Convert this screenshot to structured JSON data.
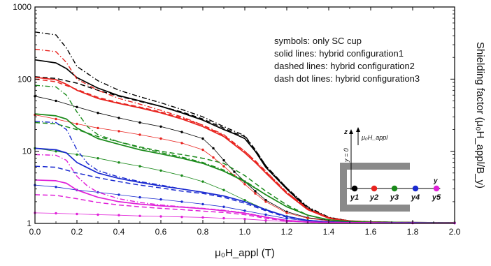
{
  "chart_data": {
    "type": "line",
    "xlabel": "μ₀H_appl (T)",
    "ylabel": "Shielding factor (μ₀H_appl/B_y)",
    "xlim": [
      0,
      2.0
    ],
    "ylim": [
      1,
      1000
    ],
    "yscale": "log",
    "x_ticks": [
      "0.0",
      "0.2",
      "0.4",
      "0.6",
      "0.8",
      "1.0",
      "1.2",
      "1.4",
      "1.6",
      "1.8",
      "2.0"
    ],
    "y_ticks": [
      "1",
      "10",
      "100",
      "1000"
    ],
    "legend_lines": [
      "symbols: only SC cup",
      "solid lines: hybrid configuration1",
      "dashed lines: hybrid configuration2",
      "dash dot lines: hybrid configuration3"
    ],
    "inset": {
      "z_label": "z",
      "y_label": "y",
      "field_label": "μ₀H_appl",
      "y0_label": "y = 0",
      "points": [
        {
          "label": "y1",
          "color": "#000000"
        },
        {
          "label": "y2",
          "color": "#e8231e"
        },
        {
          "label": "y3",
          "color": "#1a8a1a"
        },
        {
          "label": "y4",
          "color": "#1a2ad0"
        },
        {
          "label": "y5",
          "color": "#e020d8"
        }
      ]
    },
    "series": [
      {
        "position": "y1",
        "style": "solid",
        "color": "#000000",
        "x": [
          0.0,
          0.1,
          0.15,
          0.2,
          0.3,
          0.4,
          0.5,
          0.6,
          0.7,
          0.8,
          0.9,
          0.95,
          1.0,
          1.05,
          1.1,
          1.2,
          1.3,
          1.4,
          1.5,
          1.6,
          1.8,
          2.0
        ],
        "y": [
          185,
          168,
          140,
          105,
          75,
          59,
          50,
          42,
          34,
          27,
          20,
          17.5,
          15,
          10,
          6,
          3,
          1.6,
          1.2,
          1.08,
          1.05,
          1.03,
          1.02
        ]
      },
      {
        "position": "y1",
        "style": "dashed",
        "color": "#000000",
        "x": [
          0.0,
          0.1,
          0.2,
          0.3,
          0.4,
          0.5,
          0.6,
          0.7,
          0.8,
          0.9,
          0.95,
          1.0,
          1.05,
          1.1,
          1.2,
          1.3,
          1.4,
          1.5,
          1.6,
          1.8,
          2.0
        ],
        "y": [
          108,
          102,
          88,
          70,
          58,
          49,
          42,
          35,
          28,
          21,
          18,
          16,
          10.5,
          6.3,
          3.1,
          1.65,
          1.2,
          1.08,
          1.05,
          1.03,
          1.02
        ]
      },
      {
        "position": "y1",
        "style": "dashdot",
        "color": "#000000",
        "x": [
          0.0,
          0.1,
          0.15,
          0.2,
          0.3,
          0.4,
          0.5,
          0.6,
          0.7,
          0.8,
          0.9,
          0.95,
          1.0,
          1.05,
          1.1,
          1.2,
          1.3,
          1.4,
          1.5,
          1.6,
          1.8,
          2.0
        ],
        "y": [
          450,
          410,
          270,
          150,
          95,
          70,
          57,
          47,
          38,
          30,
          22,
          19,
          16.5,
          10.5,
          6.3,
          3.1,
          1.7,
          1.22,
          1.08,
          1.05,
          1.03,
          1.02
        ]
      },
      {
        "position": "y1",
        "style": "symbols",
        "color": "#000000",
        "x": [
          0.0,
          0.1,
          0.2,
          0.3,
          0.4,
          0.5,
          0.6,
          0.7,
          0.8,
          0.85,
          0.9,
          0.95,
          1.0,
          1.05,
          1.1,
          1.2,
          1.3,
          1.4,
          1.5,
          1.6,
          1.8,
          2.0
        ],
        "y": [
          58,
          50,
          41,
          34,
          29,
          25,
          22,
          18.5,
          15,
          11,
          7.5,
          5.2,
          3.8,
          2.8,
          2.1,
          1.45,
          1.2,
          1.1,
          1.06,
          1.04,
          1.03,
          1.02
        ]
      },
      {
        "position": "y2",
        "style": "solid",
        "color": "#e8231e",
        "x": [
          0.0,
          0.1,
          0.15,
          0.2,
          0.3,
          0.4,
          0.5,
          0.6,
          0.7,
          0.8,
          0.9,
          1.0,
          1.05,
          1.1,
          1.2,
          1.3,
          1.4,
          1.5,
          1.6,
          1.8,
          2.0
        ],
        "y": [
          106,
          98,
          85,
          70,
          54,
          46,
          40,
          34,
          28,
          22,
          16,
          9.5,
          7,
          5,
          2.6,
          1.55,
          1.18,
          1.07,
          1.04,
          1.03,
          1.02
        ]
      },
      {
        "position": "y2",
        "style": "dashed",
        "color": "#e8231e",
        "x": [
          0.0,
          0.1,
          0.2,
          0.3,
          0.4,
          0.5,
          0.6,
          0.7,
          0.8,
          0.9,
          1.0,
          1.05,
          1.1,
          1.2,
          1.3,
          1.4,
          1.5,
          1.6,
          1.8,
          2.0
        ],
        "y": [
          100,
          92,
          72,
          56,
          47,
          41,
          35,
          29,
          23,
          16.5,
          10,
          7.3,
          5.2,
          2.7,
          1.6,
          1.2,
          1.08,
          1.05,
          1.03,
          1.02
        ]
      },
      {
        "position": "y2",
        "style": "dashdot",
        "color": "#e8231e",
        "x": [
          0.0,
          0.1,
          0.15,
          0.2,
          0.3,
          0.4,
          0.5,
          0.6,
          0.7,
          0.8,
          0.9,
          1.0,
          1.05,
          1.1,
          1.2,
          1.3,
          1.4,
          1.5,
          1.6,
          1.8,
          2.0
        ],
        "y": [
          260,
          240,
          170,
          100,
          70,
          54,
          45,
          37,
          30,
          23,
          17,
          10,
          7.4,
          5.3,
          2.7,
          1.6,
          1.2,
          1.08,
          1.05,
          1.03,
          1.02
        ]
      },
      {
        "position": "y2",
        "style": "symbols",
        "color": "#e8231e",
        "x": [
          0.0,
          0.1,
          0.2,
          0.3,
          0.4,
          0.5,
          0.6,
          0.7,
          0.8,
          0.85,
          0.9,
          0.95,
          1.0,
          1.05,
          1.1,
          1.2,
          1.3,
          1.4,
          1.5,
          1.6,
          1.8,
          2.0
        ],
        "y": [
          32,
          28,
          24,
          21,
          19,
          17,
          15,
          13,
          10.5,
          8.2,
          6.2,
          4.6,
          3.5,
          2.6,
          2.0,
          1.4,
          1.18,
          1.09,
          1.05,
          1.04,
          1.03,
          1.02
        ]
      },
      {
        "position": "y3",
        "style": "solid",
        "color": "#1a8a1a",
        "x": [
          0.0,
          0.1,
          0.15,
          0.2,
          0.3,
          0.4,
          0.5,
          0.6,
          0.7,
          0.8,
          0.9,
          1.0,
          1.1,
          1.2,
          1.3,
          1.4,
          1.5,
          1.6,
          1.8,
          2.0
        ],
        "y": [
          33,
          31,
          28,
          21,
          15,
          12.5,
          10.5,
          9.2,
          8,
          6.8,
          5.3,
          3.8,
          2.5,
          1.7,
          1.3,
          1.12,
          1.06,
          1.04,
          1.03,
          1.02
        ]
      },
      {
        "position": "y3",
        "style": "dashed",
        "color": "#1a8a1a",
        "x": [
          0.0,
          0.1,
          0.2,
          0.3,
          0.4,
          0.5,
          0.6,
          0.7,
          0.8,
          0.9,
          1.0,
          1.1,
          1.2,
          1.3,
          1.4,
          1.5,
          1.6,
          1.8,
          2.0
        ],
        "y": [
          25,
          24,
          20,
          16,
          13.5,
          11.5,
          10,
          9,
          8,
          6.8,
          4.6,
          2.8,
          1.8,
          1.3,
          1.12,
          1.06,
          1.04,
          1.03,
          1.02
        ]
      },
      {
        "position": "y3",
        "style": "dashdot",
        "color": "#1a8a1a",
        "x": [
          0.0,
          0.1,
          0.15,
          0.2,
          0.25,
          0.3,
          0.4,
          0.5,
          0.6,
          0.7,
          0.8,
          0.9,
          1.0,
          1.1,
          1.2,
          1.3,
          1.4,
          1.5,
          1.6,
          1.8,
          2.0
        ],
        "y": [
          82,
          78,
          60,
          35,
          22,
          17,
          13.5,
          11.2,
          9.6,
          8.3,
          7,
          5.5,
          3.9,
          2.5,
          1.7,
          1.3,
          1.12,
          1.06,
          1.04,
          1.03,
          1.02
        ]
      },
      {
        "position": "y3",
        "style": "symbols",
        "color": "#1a8a1a",
        "x": [
          0.0,
          0.1,
          0.2,
          0.3,
          0.4,
          0.5,
          0.6,
          0.7,
          0.8,
          0.9,
          1.0,
          1.1,
          1.2,
          1.3,
          1.4,
          1.5,
          1.6,
          1.8,
          2.0
        ],
        "y": [
          11,
          10,
          9,
          8,
          7,
          6.2,
          5.4,
          4.6,
          3.8,
          2.9,
          2.1,
          1.55,
          1.25,
          1.1,
          1.06,
          1.04,
          1.03,
          1.02,
          1.02
        ]
      },
      {
        "position": "y4",
        "style": "solid",
        "color": "#1a2ad0",
        "x": [
          0.0,
          0.1,
          0.15,
          0.2,
          0.3,
          0.4,
          0.5,
          0.6,
          0.7,
          0.8,
          0.9,
          1.0,
          1.1,
          1.2,
          1.3,
          1.4,
          1.5,
          1.6,
          1.8,
          2.0
        ],
        "y": [
          11,
          10.5,
          9.5,
          7,
          5,
          4.2,
          3.7,
          3.3,
          3.0,
          2.7,
          2.4,
          2.0,
          1.55,
          1.25,
          1.1,
          1.05,
          1.03,
          1.02,
          1.02,
          1.01
        ]
      },
      {
        "position": "y4",
        "style": "dashed",
        "color": "#1a2ad0",
        "x": [
          0.0,
          0.1,
          0.2,
          0.3,
          0.4,
          0.5,
          0.6,
          0.7,
          0.8,
          0.9,
          1.0,
          1.1,
          1.2,
          1.3,
          1.4,
          1.5,
          1.6,
          1.8,
          2.0
        ],
        "y": [
          6.2,
          6,
          5,
          4.3,
          3.8,
          3.4,
          3.1,
          2.8,
          2.6,
          2.3,
          1.9,
          1.5,
          1.22,
          1.1,
          1.05,
          1.03,
          1.02,
          1.02,
          1.01
        ]
      },
      {
        "position": "y4",
        "style": "dashdot",
        "color": "#1a2ad0",
        "x": [
          0.0,
          0.1,
          0.15,
          0.2,
          0.25,
          0.3,
          0.4,
          0.5,
          0.6,
          0.7,
          0.8,
          0.9,
          1.0,
          1.1,
          1.2,
          1.3,
          1.4,
          1.5,
          1.6,
          1.8,
          2.0
        ],
        "y": [
          26,
          25,
          20,
          10.5,
          6.8,
          5.4,
          4.4,
          3.8,
          3.4,
          3.0,
          2.7,
          2.4,
          2.0,
          1.55,
          1.25,
          1.1,
          1.05,
          1.03,
          1.02,
          1.02,
          1.01
        ]
      },
      {
        "position": "y4",
        "style": "symbols",
        "color": "#1a2ad0",
        "x": [
          0.0,
          0.1,
          0.2,
          0.3,
          0.4,
          0.5,
          0.6,
          0.7,
          0.8,
          0.9,
          1.0,
          1.1,
          1.2,
          1.3,
          1.4,
          1.5,
          1.6,
          1.8,
          2.0
        ],
        "y": [
          3.4,
          3.2,
          2.9,
          2.7,
          2.5,
          2.3,
          2.15,
          2.0,
          1.85,
          1.7,
          1.5,
          1.32,
          1.17,
          1.08,
          1.04,
          1.03,
          1.02,
          1.02,
          1.01
        ]
      },
      {
        "position": "y5",
        "style": "solid",
        "color": "#e020d8",
        "x": [
          0.0,
          0.1,
          0.15,
          0.2,
          0.3,
          0.4,
          0.5,
          0.6,
          0.7,
          0.8,
          0.9,
          1.0,
          1.1,
          1.2,
          1.3,
          1.4,
          1.6,
          1.8,
          2.0
        ],
        "y": [
          4,
          3.9,
          3.6,
          2.9,
          2.3,
          2.0,
          1.85,
          1.75,
          1.68,
          1.6,
          1.5,
          1.38,
          1.22,
          1.1,
          1.05,
          1.03,
          1.02,
          1.01,
          1.01
        ]
      },
      {
        "position": "y5",
        "style": "dashed",
        "color": "#e020d8",
        "x": [
          0.0,
          0.1,
          0.2,
          0.3,
          0.4,
          0.5,
          0.6,
          0.7,
          0.8,
          0.9,
          1.0,
          1.1,
          1.2,
          1.3,
          1.4,
          1.6,
          1.8,
          2.0
        ],
        "y": [
          2.5,
          2.45,
          2.2,
          1.95,
          1.8,
          1.7,
          1.62,
          1.55,
          1.48,
          1.42,
          1.32,
          1.18,
          1.08,
          1.04,
          1.03,
          1.02,
          1.01,
          1.01
        ]
      },
      {
        "position": "y5",
        "style": "dashdot",
        "color": "#e020d8",
        "x": [
          0.0,
          0.1,
          0.15,
          0.2,
          0.25,
          0.3,
          0.4,
          0.5,
          0.6,
          0.7,
          0.8,
          0.9,
          1.0,
          1.1,
          1.2,
          1.3,
          1.4,
          1.6,
          1.8,
          2.0
        ],
        "y": [
          9,
          8.8,
          7.5,
          4.5,
          3.3,
          2.7,
          2.2,
          1.95,
          1.8,
          1.7,
          1.62,
          1.52,
          1.4,
          1.23,
          1.1,
          1.05,
          1.03,
          1.02,
          1.01,
          1.01
        ]
      },
      {
        "position": "y5",
        "style": "symbols",
        "color": "#e020d8",
        "x": [
          0.0,
          0.1,
          0.2,
          0.3,
          0.4,
          0.5,
          0.6,
          0.7,
          0.8,
          0.9,
          1.0,
          1.1,
          1.2,
          1.3,
          1.4,
          1.6,
          1.8,
          2.0
        ],
        "y": [
          1.4,
          1.38,
          1.35,
          1.32,
          1.3,
          1.27,
          1.25,
          1.23,
          1.21,
          1.18,
          1.15,
          1.1,
          1.06,
          1.04,
          1.03,
          1.02,
          1.01,
          1.01
        ]
      }
    ]
  }
}
